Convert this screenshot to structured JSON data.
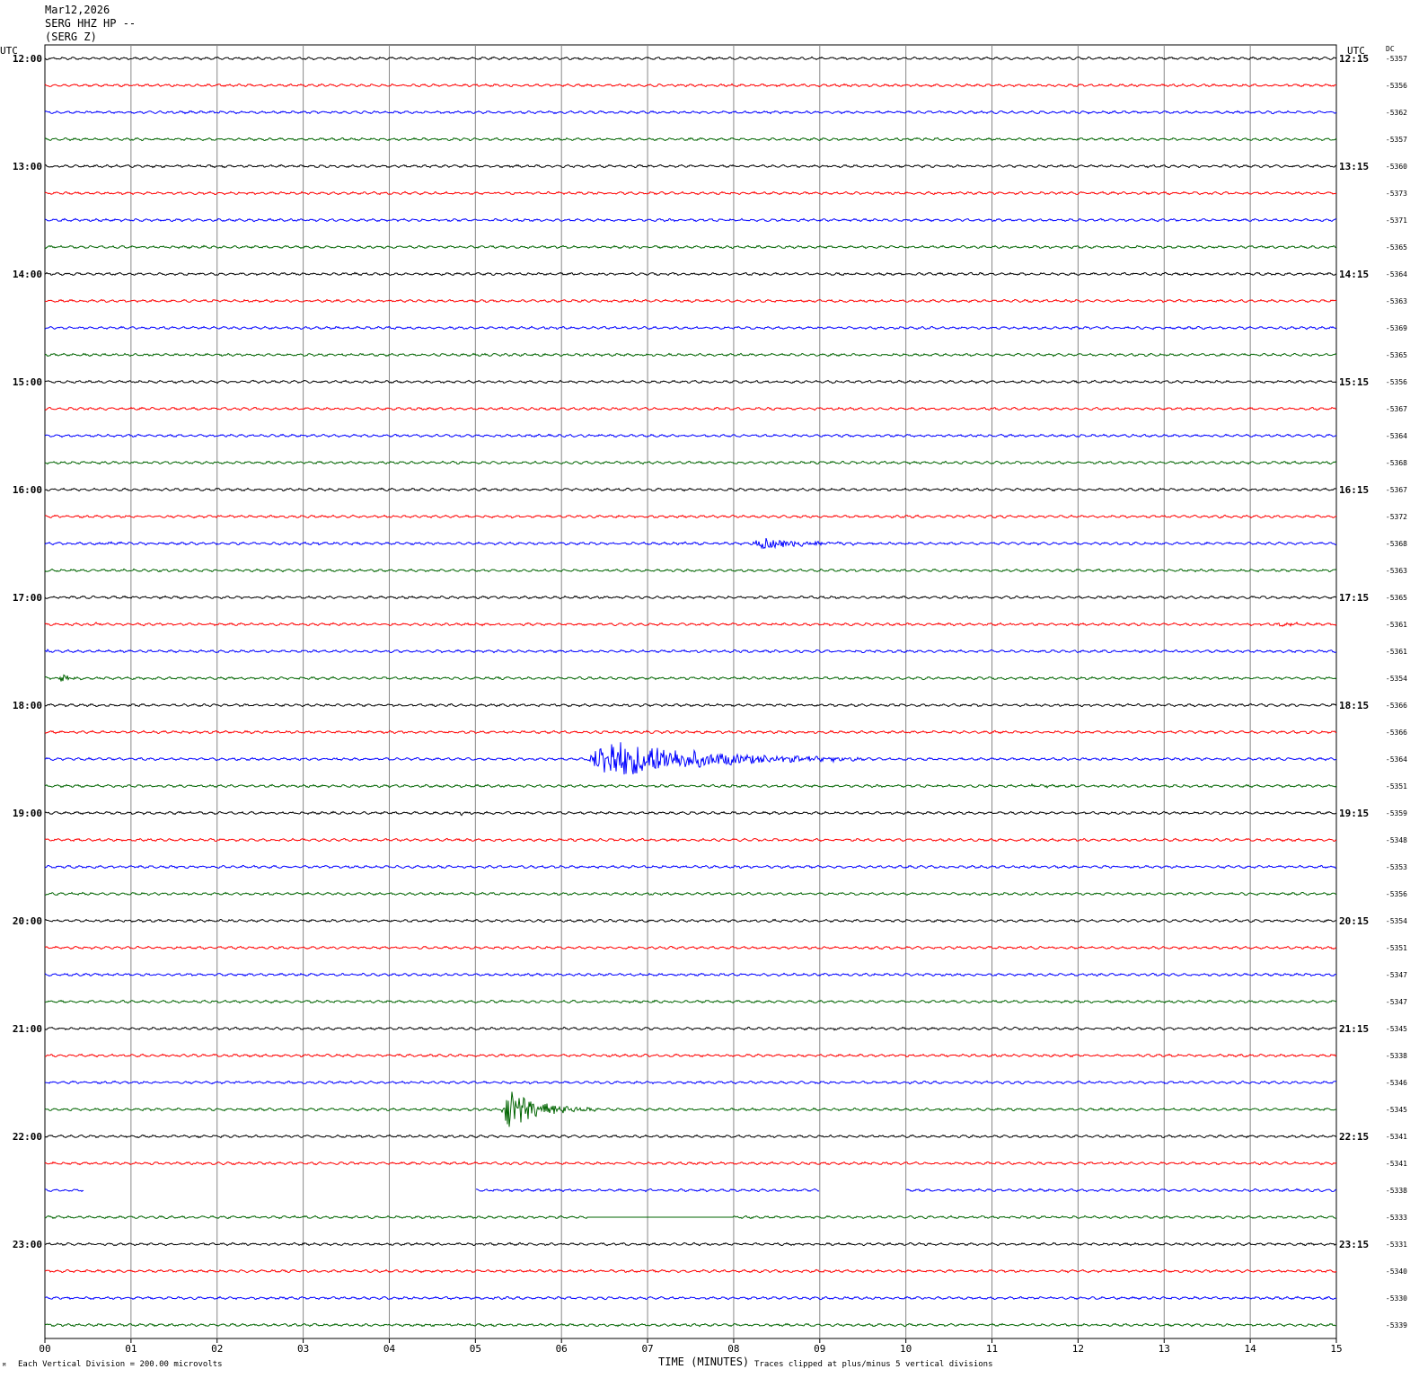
{
  "header": {
    "date": "Mar12,2026",
    "station": "SERG HHZ HP --",
    "channel": "(SERG Z)"
  },
  "corner": {
    "left_utc": "UTC",
    "right_utc": "UTC",
    "dc": "DC"
  },
  "footer": {
    "scale": "Each Vertical Division =  200.00 microvolts",
    "clip": "Traces clipped at plus/minus 5 vertical divisions",
    "mark": "ᴹ"
  },
  "chart_data": {
    "type": "line",
    "title": "",
    "xlabel": "TIME (MINUTES)",
    "ylabel": "",
    "xlim": [
      0,
      15
    ],
    "x_ticks": [
      "00",
      "01",
      "02",
      "03",
      "04",
      "05",
      "06",
      "07",
      "08",
      "09",
      "10",
      "11",
      "12",
      "13",
      "14",
      "15"
    ],
    "grid": true,
    "legend": "none",
    "trace_colors": [
      "#000000",
      "#ff0000",
      "#0000ff",
      "#006400"
    ],
    "left_hour_labels": [
      "12:00",
      "13:00",
      "14:00",
      "15:00",
      "16:00",
      "17:00",
      "18:00",
      "19:00",
      "20:00",
      "21:00",
      "22:00",
      "23:00"
    ],
    "right_hour_labels": [
      "12:15",
      "13:15",
      "14:15",
      "15:15",
      "16:15",
      "17:15",
      "18:15",
      "19:15",
      "20:15",
      "21:15",
      "22:15",
      "23:15"
    ],
    "dc_offsets": [
      "-5357",
      "-5356",
      "-5362",
      "-5357",
      "-5360",
      "-5373",
      "-5371",
      "-5365",
      "-5364",
      "-5363",
      "-5369",
      "-5365",
      "-5356",
      "-5367",
      "-5364",
      "-5368",
      "-5367",
      "-5372",
      "-5368",
      "-5363",
      "-5365",
      "-5361",
      "-5361",
      "-5354",
      "-5366",
      "-5366",
      "-5364",
      "-5351",
      "-5359",
      "-5348",
      "-5353",
      "-5356",
      "-5354",
      "-5351",
      "-5347",
      "-5347",
      "-5345",
      "-5338",
      "-5346",
      "-5345",
      "-5341",
      "-5341",
      "-5338",
      "-5333",
      "-5331",
      "-5340",
      "-5330",
      "-5339"
    ],
    "events": [
      {
        "trace": 3,
        "start_min": 10.1,
        "end_min": 10.8,
        "amp_div": 0.15
      },
      {
        "trace": 6,
        "start_min": 12.3,
        "end_min": 12.6,
        "amp_div": 0.12
      },
      {
        "trace": 18,
        "start_min": 0.6,
        "end_min": 1.3,
        "amp_div": 0.25
      },
      {
        "trace": 18,
        "start_min": 3.0,
        "end_min": 4.1,
        "amp_div": 0.12
      },
      {
        "trace": 18,
        "start_min": 7.3,
        "end_min": 7.9,
        "amp_div": 0.15
      },
      {
        "trace": 18,
        "start_min": 8.2,
        "end_min": 10.0,
        "amp_div": 1.2
      },
      {
        "trace": 20,
        "start_min": 9.8,
        "end_min": 9.9,
        "amp_div": 0.2
      },
      {
        "trace": 21,
        "start_min": 0.5,
        "end_min": 1.0,
        "amp_div": 0.3
      },
      {
        "trace": 21,
        "start_min": 14.3,
        "end_min": 15.0,
        "amp_div": 0.4
      },
      {
        "trace": 22,
        "start_min": 0.0,
        "end_min": 0.2,
        "amp_div": 0.3
      },
      {
        "trace": 23,
        "start_min": 0.15,
        "end_min": 0.6,
        "amp_div": 0.9
      },
      {
        "trace": 26,
        "start_min": 6.3,
        "end_min": 9.5,
        "amp_div": 5.0
      },
      {
        "trace": 27,
        "start_min": 11.4,
        "end_min": 12.6,
        "amp_div": 0.2
      },
      {
        "trace": 28,
        "start_min": 4.8,
        "end_min": 5.1,
        "amp_div": 0.4
      },
      {
        "trace": 36,
        "start_min": 9.0,
        "end_min": 10.0,
        "amp_div": 0.2
      },
      {
        "trace": 39,
        "start_min": 5.3,
        "end_min": 6.4,
        "amp_div": 5.0
      }
    ],
    "gaps": [
      {
        "trace": 42,
        "start_min": 0.45,
        "end_min": 5.0
      },
      {
        "trace": 42,
        "start_min": 9.0,
        "end_min": 10.0
      }
    ],
    "flat_segments": [
      {
        "trace": 43,
        "start_min": 6.3,
        "end_min": 8.0
      }
    ]
  }
}
